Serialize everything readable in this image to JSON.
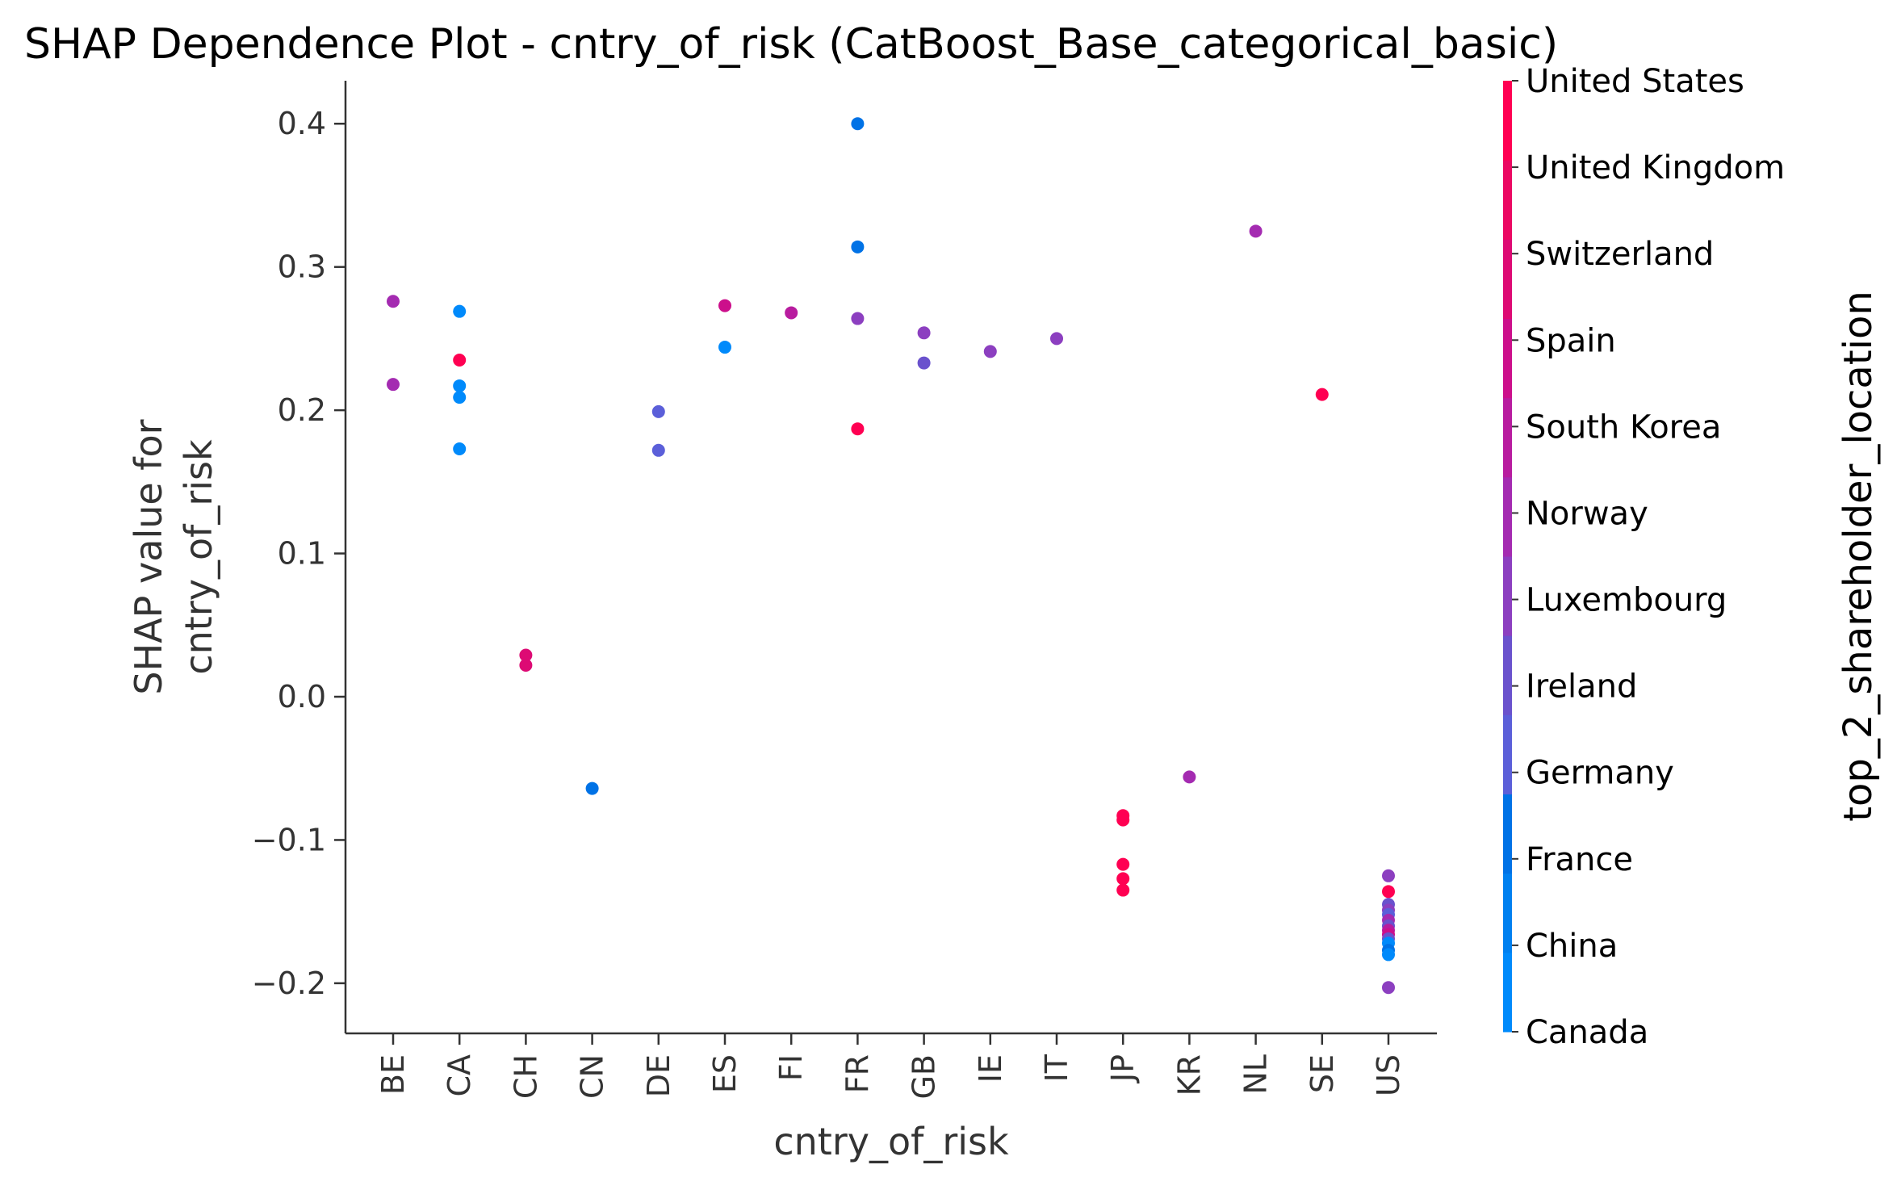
{
  "chart_data": {
    "type": "scatter",
    "title": "SHAP Dependence Plot - cntry_of_risk (CatBoost_Base_categorical_basic)",
    "xlabel": "cntry_of_risk",
    "ylabel_lines": [
      "SHAP value for",
      "cntry_of_risk"
    ],
    "categories": [
      "BE",
      "CA",
      "CH",
      "CN",
      "DE",
      "ES",
      "FI",
      "FR",
      "GB",
      "IE",
      "IT",
      "JP",
      "KR",
      "NL",
      "SE",
      "US"
    ],
    "ylim": [
      -0.235,
      0.43
    ],
    "yticks": [
      -0.2,
      -0.1,
      0.0,
      0.1,
      0.2,
      0.3,
      0.4
    ],
    "ytick_labels": [
      "−0.2",
      "−0.1",
      "0.0",
      "0.1",
      "0.2",
      "0.3",
      "0.4"
    ],
    "grid": false,
    "colorbar": {
      "label": "top_2_shareholder_location",
      "categories": [
        "Canada",
        "China",
        "France",
        "Germany",
        "Ireland",
        "Luxembourg",
        "Norway",
        "South Korea",
        "Spain",
        "Switzerland",
        "United Kingdom",
        "United States"
      ],
      "colors": [
        "#008afb",
        "#0080f0",
        "#0072e6",
        "#5b5fd9",
        "#6a52cd",
        "#8c3fc0",
        "#a42bb1",
        "#b81c9f",
        "#cc0f8b",
        "#dd0a74",
        "#eb0862",
        "#ff0052"
      ]
    },
    "points": [
      {
        "x": "BE",
        "y": 0.276,
        "hue": "Norway"
      },
      {
        "x": "BE",
        "y": 0.218,
        "hue": "Norway"
      },
      {
        "x": "CA",
        "y": 0.269,
        "hue": "Canada"
      },
      {
        "x": "CA",
        "y": 0.235,
        "hue": "United States"
      },
      {
        "x": "CA",
        "y": 0.217,
        "hue": "Canada"
      },
      {
        "x": "CA",
        "y": 0.209,
        "hue": "Canada"
      },
      {
        "x": "CA",
        "y": 0.173,
        "hue": "Canada"
      },
      {
        "x": "CH",
        "y": 0.029,
        "hue": "Switzerland"
      },
      {
        "x": "CH",
        "y": 0.022,
        "hue": "Switzerland"
      },
      {
        "x": "CN",
        "y": -0.064,
        "hue": "France"
      },
      {
        "x": "DE",
        "y": 0.199,
        "hue": "Germany"
      },
      {
        "x": "DE",
        "y": 0.172,
        "hue": "Germany"
      },
      {
        "x": "ES",
        "y": 0.273,
        "hue": "Spain"
      },
      {
        "x": "ES",
        "y": 0.244,
        "hue": "Canada"
      },
      {
        "x": "FI",
        "y": 0.268,
        "hue": "South Korea"
      },
      {
        "x": "FR",
        "y": 0.4,
        "hue": "France"
      },
      {
        "x": "FR",
        "y": 0.314,
        "hue": "France"
      },
      {
        "x": "FR",
        "y": 0.264,
        "hue": "Luxembourg"
      },
      {
        "x": "FR",
        "y": 0.187,
        "hue": "United States"
      },
      {
        "x": "GB",
        "y": 0.254,
        "hue": "Luxembourg"
      },
      {
        "x": "GB",
        "y": 0.233,
        "hue": "Ireland"
      },
      {
        "x": "IE",
        "y": 0.241,
        "hue": "Luxembourg"
      },
      {
        "x": "IT",
        "y": 0.25,
        "hue": "Luxembourg"
      },
      {
        "x": "JP",
        "y": -0.083,
        "hue": "United States"
      },
      {
        "x": "JP",
        "y": -0.086,
        "hue": "United States"
      },
      {
        "x": "JP",
        "y": -0.117,
        "hue": "United States"
      },
      {
        "x": "JP",
        "y": -0.127,
        "hue": "United States"
      },
      {
        "x": "JP",
        "y": -0.135,
        "hue": "United States"
      },
      {
        "x": "KR",
        "y": -0.056,
        "hue": "Norway"
      },
      {
        "x": "NL",
        "y": 0.325,
        "hue": "Norway"
      },
      {
        "x": "SE",
        "y": 0.211,
        "hue": "United States"
      },
      {
        "x": "US",
        "y": -0.125,
        "hue": "Luxembourg"
      },
      {
        "x": "US",
        "y": -0.136,
        "hue": "United States"
      },
      {
        "x": "US",
        "y": -0.145,
        "hue": "Ireland"
      },
      {
        "x": "US",
        "y": -0.149,
        "hue": "Luxembourg"
      },
      {
        "x": "US",
        "y": -0.152,
        "hue": "Germany"
      },
      {
        "x": "US",
        "y": -0.156,
        "hue": "Norway"
      },
      {
        "x": "US",
        "y": -0.16,
        "hue": "Ireland"
      },
      {
        "x": "US",
        "y": -0.163,
        "hue": "South Korea"
      },
      {
        "x": "US",
        "y": -0.166,
        "hue": "Spain"
      },
      {
        "x": "US",
        "y": -0.169,
        "hue": "Ireland"
      },
      {
        "x": "US",
        "y": -0.172,
        "hue": "Canada"
      },
      {
        "x": "US",
        "y": -0.177,
        "hue": "France"
      },
      {
        "x": "US",
        "y": -0.18,
        "hue": "Canada"
      },
      {
        "x": "US",
        "y": -0.203,
        "hue": "Luxembourg"
      }
    ]
  }
}
